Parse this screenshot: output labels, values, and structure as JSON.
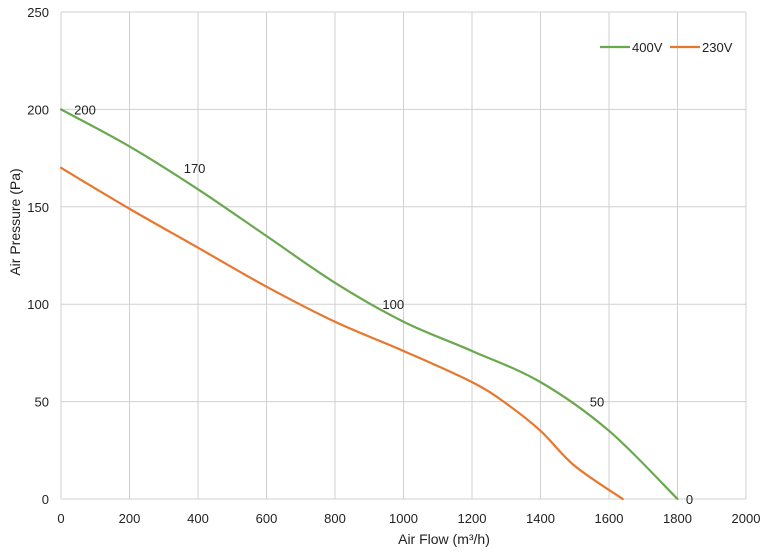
{
  "chart_data": {
    "type": "line",
    "xlabel": "Air Flow  (m³/h)",
    "ylabel": "Air Pressure  (Pa)",
    "xlim": [
      0,
      2000
    ],
    "ylim": [
      0,
      250
    ],
    "x_ticks": [
      0,
      200,
      400,
      600,
      800,
      1000,
      1200,
      1400,
      1600,
      1800,
      2000
    ],
    "y_ticks": [
      0,
      50,
      100,
      150,
      200,
      250
    ],
    "grid": true,
    "legend_position": "top-right",
    "series": [
      {
        "name": "400V",
        "color": "#6aa84f",
        "points": [
          [
            0,
            200
          ],
          [
            200,
            181
          ],
          [
            400,
            159
          ],
          [
            600,
            135
          ],
          [
            800,
            111
          ],
          [
            1000,
            91
          ],
          [
            1200,
            76
          ],
          [
            1400,
            60
          ],
          [
            1600,
            35
          ],
          [
            1800,
            0
          ]
        ]
      },
      {
        "name": "230V",
        "color": "#e8772e",
        "points": [
          [
            0,
            170
          ],
          [
            200,
            149
          ],
          [
            400,
            129
          ],
          [
            600,
            109
          ],
          [
            800,
            91
          ],
          [
            1000,
            76
          ],
          [
            1200,
            60
          ],
          [
            1300,
            49
          ],
          [
            1400,
            35
          ],
          [
            1500,
            17
          ],
          [
            1640,
            0
          ]
        ]
      }
    ],
    "annotations": [
      {
        "text": "200",
        "x": 70,
        "y": 200
      },
      {
        "text": "170",
        "x": 390,
        "y": 170
      },
      {
        "text": "100",
        "x": 970,
        "y": 100
      },
      {
        "text": "50",
        "x": 1565,
        "y": 50
      },
      {
        "text": "0",
        "x": 1835,
        "y": 0
      }
    ]
  }
}
